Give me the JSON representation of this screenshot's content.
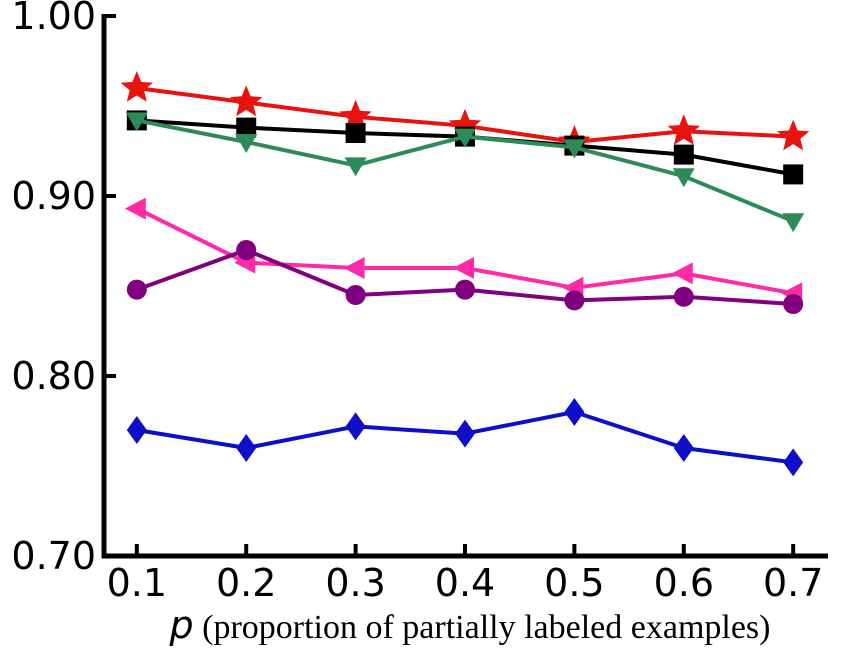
{
  "chart_data": {
    "type": "line",
    "title": "",
    "xlabel_var": "p",
    "xlabel_text": " (proportion of partially labeled examples)",
    "ylabel": "",
    "x": [
      0.1,
      0.2,
      0.3,
      0.4,
      0.5,
      0.6,
      0.7
    ],
    "x_tick_labels": [
      "0.1",
      "0.2",
      "0.3",
      "0.4",
      "0.5",
      "0.6",
      "0.7"
    ],
    "y_ticks": [
      0.7,
      0.8,
      0.9,
      1.0
    ],
    "y_tick_labels": [
      "0.70",
      "0.80",
      "0.90",
      "1.00"
    ],
    "xlim": [
      0.07,
      0.73
    ],
    "ylim": [
      0.7,
      1.0
    ],
    "grid": false,
    "legend": "none",
    "series": [
      {
        "color": "#e8130f",
        "marker": "star",
        "values": [
          0.96,
          0.952,
          0.944,
          0.939,
          0.93,
          0.936,
          0.933
        ]
      },
      {
        "color": "#000000",
        "marker": "square",
        "values": [
          0.942,
          0.938,
          0.935,
          0.933,
          0.928,
          0.923,
          0.912
        ]
      },
      {
        "color": "#2e8b57",
        "marker": "triangle-down",
        "values": [
          0.942,
          0.93,
          0.917,
          0.933,
          0.927,
          0.911,
          0.886
        ]
      },
      {
        "color": "#ff2aa6",
        "marker": "triangle-left",
        "values": [
          0.893,
          0.863,
          0.86,
          0.86,
          0.849,
          0.857,
          0.846
        ]
      },
      {
        "color": "#800080",
        "marker": "circle",
        "values": [
          0.848,
          0.87,
          0.845,
          0.848,
          0.842,
          0.844,
          0.84
        ]
      },
      {
        "color": "#0f0fc8",
        "marker": "diamond",
        "values": [
          0.77,
          0.76,
          0.772,
          0.768,
          0.78,
          0.76,
          0.752
        ]
      }
    ]
  }
}
